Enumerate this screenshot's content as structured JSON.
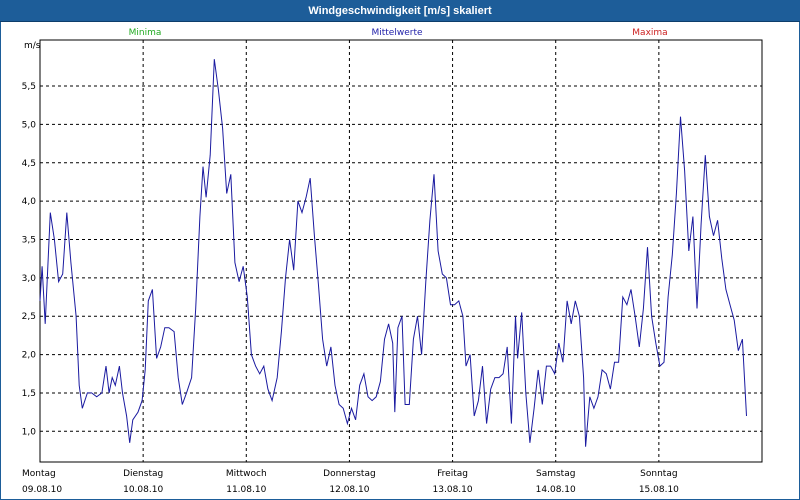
{
  "title": "Windgeschwindigkeit [m/s] skaliert",
  "legend": [
    {
      "label": "Minima",
      "color": "#22aa22"
    },
    {
      "label": "Mittelwerte",
      "color": "#2222aa"
    },
    {
      "label": "Maxima",
      "color": "#cc2222"
    }
  ],
  "chart_data": {
    "type": "line",
    "title": "Windgeschwindigkeit [m/s] skaliert",
    "ylabel": "m/s",
    "ylim": [
      0.6,
      6.1
    ],
    "xlim": [
      0,
      7
    ],
    "yticks": [
      {
        "value": 1.0,
        "label": "1,0"
      },
      {
        "value": 1.5,
        "label": "1,5"
      },
      {
        "value": 2.0,
        "label": "2,0"
      },
      {
        "value": 2.5,
        "label": "2,5"
      },
      {
        "value": 3.0,
        "label": "3,0"
      },
      {
        "value": 3.5,
        "label": "3,5"
      },
      {
        "value": 4.0,
        "label": "4,0"
      },
      {
        "value": 4.5,
        "label": "4,5"
      },
      {
        "value": 5.0,
        "label": "5,0"
      },
      {
        "value": 5.5,
        "label": "5,5"
      }
    ],
    "days": [
      {
        "day": "Montag",
        "date": "09.08.10"
      },
      {
        "day": "Dienstag",
        "date": "10.08.10"
      },
      {
        "day": "Mittwoch",
        "date": "11.08.10"
      },
      {
        "day": "Donnerstag",
        "date": "12.08.10"
      },
      {
        "day": "Freitag",
        "date": "13.08.10"
      },
      {
        "day": "Samstag",
        "date": "14.08.10"
      },
      {
        "day": "Sonntag",
        "date": "15.08.10"
      }
    ],
    "series": [
      {
        "name": "Mittelwerte",
        "color": "#1a1aa0",
        "points": [
          [
            0.0,
            2.7
          ],
          [
            0.02,
            3.15
          ],
          [
            0.05,
            2.4
          ],
          [
            0.1,
            3.85
          ],
          [
            0.14,
            3.5
          ],
          [
            0.18,
            2.95
          ],
          [
            0.22,
            3.05
          ],
          [
            0.26,
            3.85
          ],
          [
            0.3,
            3.2
          ],
          [
            0.35,
            2.5
          ],
          [
            0.38,
            1.6
          ],
          [
            0.41,
            1.3
          ],
          [
            0.46,
            1.5
          ],
          [
            0.5,
            1.5
          ],
          [
            0.55,
            1.45
          ],
          [
            0.6,
            1.5
          ],
          [
            0.64,
            1.85
          ],
          [
            0.67,
            1.5
          ],
          [
            0.7,
            1.7
          ],
          [
            0.73,
            1.6
          ],
          [
            0.77,
            1.85
          ],
          [
            0.8,
            1.5
          ],
          [
            0.84,
            1.2
          ],
          [
            0.87,
            0.85
          ],
          [
            0.9,
            1.15
          ],
          [
            0.95,
            1.25
          ],
          [
            0.99,
            1.4
          ],
          [
            1.02,
            1.8
          ],
          [
            1.05,
            2.7
          ],
          [
            1.09,
            2.85
          ],
          [
            1.13,
            1.95
          ],
          [
            1.17,
            2.1
          ],
          [
            1.21,
            2.35
          ],
          [
            1.25,
            2.35
          ],
          [
            1.3,
            2.3
          ],
          [
            1.34,
            1.7
          ],
          [
            1.38,
            1.35
          ],
          [
            1.42,
            1.5
          ],
          [
            1.47,
            1.7
          ],
          [
            1.51,
            2.6
          ],
          [
            1.55,
            3.8
          ],
          [
            1.58,
            4.45
          ],
          [
            1.61,
            4.05
          ],
          [
            1.65,
            4.6
          ],
          [
            1.69,
            5.85
          ],
          [
            1.73,
            5.45
          ],
          [
            1.77,
            4.95
          ],
          [
            1.81,
            4.1
          ],
          [
            1.85,
            4.35
          ],
          [
            1.89,
            3.2
          ],
          [
            1.93,
            2.95
          ],
          [
            1.97,
            3.15
          ],
          [
            2.01,
            2.75
          ],
          [
            2.05,
            2.0
          ],
          [
            2.09,
            1.85
          ],
          [
            2.13,
            1.75
          ],
          [
            2.17,
            1.85
          ],
          [
            2.21,
            1.55
          ],
          [
            2.25,
            1.4
          ],
          [
            2.3,
            1.7
          ],
          [
            2.34,
            2.3
          ],
          [
            2.38,
            3.0
          ],
          [
            2.42,
            3.5
          ],
          [
            2.46,
            3.1
          ],
          [
            2.5,
            4.0
          ],
          [
            2.54,
            3.85
          ],
          [
            2.58,
            4.05
          ],
          [
            2.62,
            4.3
          ],
          [
            2.66,
            3.55
          ],
          [
            2.7,
            2.9
          ],
          [
            2.74,
            2.2
          ],
          [
            2.78,
            1.85
          ],
          [
            2.82,
            2.1
          ],
          [
            2.86,
            1.6
          ],
          [
            2.9,
            1.35
          ],
          [
            2.94,
            1.3
          ],
          [
            2.98,
            1.1
          ],
          [
            3.02,
            1.3
          ],
          [
            3.06,
            1.15
          ],
          [
            3.1,
            1.6
          ],
          [
            3.14,
            1.75
          ],
          [
            3.18,
            1.45
          ],
          [
            3.22,
            1.4
          ],
          [
            3.26,
            1.45
          ],
          [
            3.3,
            1.65
          ],
          [
            3.34,
            2.2
          ],
          [
            3.38,
            2.4
          ],
          [
            3.42,
            2.15
          ],
          [
            3.44,
            1.25
          ],
          [
            3.47,
            2.35
          ],
          [
            3.51,
            2.5
          ],
          [
            3.54,
            1.35
          ],
          [
            3.58,
            1.35
          ],
          [
            3.62,
            2.2
          ],
          [
            3.66,
            2.5
          ],
          [
            3.7,
            2.0
          ],
          [
            3.74,
            2.95
          ],
          [
            3.78,
            3.75
          ],
          [
            3.82,
            4.35
          ],
          [
            3.86,
            3.35
          ],
          [
            3.9,
            3.05
          ],
          [
            3.94,
            3.0
          ],
          [
            3.98,
            2.65
          ],
          [
            4.02,
            2.65
          ],
          [
            4.06,
            2.7
          ],
          [
            4.1,
            2.5
          ],
          [
            4.13,
            1.85
          ],
          [
            4.17,
            2.0
          ],
          [
            4.21,
            1.2
          ],
          [
            4.25,
            1.4
          ],
          [
            4.29,
            1.85
          ],
          [
            4.33,
            1.1
          ],
          [
            4.37,
            1.55
          ],
          [
            4.41,
            1.7
          ],
          [
            4.45,
            1.7
          ],
          [
            4.49,
            1.75
          ],
          [
            4.53,
            2.1
          ],
          [
            4.57,
            1.1
          ],
          [
            4.61,
            2.5
          ],
          [
            4.63,
            1.95
          ],
          [
            4.67,
            2.55
          ],
          [
            4.71,
            1.5
          ],
          [
            4.75,
            0.85
          ],
          [
            4.79,
            1.3
          ],
          [
            4.83,
            1.8
          ],
          [
            4.87,
            1.35
          ],
          [
            4.91,
            1.85
          ],
          [
            4.95,
            1.85
          ],
          [
            4.99,
            1.75
          ],
          [
            5.03,
            2.15
          ],
          [
            5.07,
            1.9
          ],
          [
            5.11,
            2.7
          ],
          [
            5.15,
            2.4
          ],
          [
            5.19,
            2.7
          ],
          [
            5.23,
            2.5
          ],
          [
            5.27,
            1.7
          ],
          [
            5.29,
            0.8
          ],
          [
            5.33,
            1.45
          ],
          [
            5.37,
            1.3
          ],
          [
            5.41,
            1.45
          ],
          [
            5.45,
            1.8
          ],
          [
            5.49,
            1.75
          ],
          [
            5.53,
            1.55
          ],
          [
            5.57,
            1.9
          ],
          [
            5.61,
            1.9
          ],
          [
            5.65,
            2.75
          ],
          [
            5.69,
            2.65
          ],
          [
            5.73,
            2.85
          ],
          [
            5.77,
            2.5
          ],
          [
            5.81,
            2.1
          ],
          [
            5.85,
            2.6
          ],
          [
            5.89,
            3.4
          ],
          [
            5.93,
            2.5
          ],
          [
            5.97,
            2.15
          ],
          [
            6.01,
            1.85
          ],
          [
            6.05,
            1.9
          ],
          [
            6.09,
            2.75
          ],
          [
            6.13,
            3.3
          ],
          [
            6.17,
            4.1
          ],
          [
            6.21,
            5.1
          ],
          [
            6.25,
            4.4
          ],
          [
            6.29,
            3.35
          ],
          [
            6.33,
            3.8
          ],
          [
            6.37,
            2.6
          ],
          [
            6.41,
            3.7
          ],
          [
            6.45,
            4.6
          ],
          [
            6.49,
            3.8
          ],
          [
            6.53,
            3.55
          ],
          [
            6.57,
            3.75
          ],
          [
            6.61,
            3.25
          ],
          [
            6.65,
            2.85
          ],
          [
            6.69,
            2.65
          ],
          [
            6.73,
            2.45
          ],
          [
            6.77,
            2.05
          ],
          [
            6.81,
            2.2
          ],
          [
            6.85,
            1.2
          ]
        ]
      }
    ]
  }
}
